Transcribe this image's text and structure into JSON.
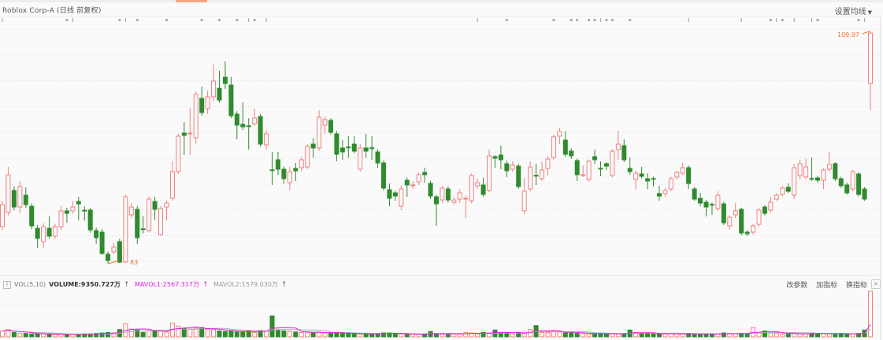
{
  "header": {
    "title": "Roblox Corp-A (日线 前复权)",
    "ma_settings_label": "设置均线"
  },
  "colors": {
    "up": "#f08080",
    "down": "#2e8b2e",
    "mavol1": "#e020e0",
    "mavol2": "#aaaaaa",
    "marker": "#f07030"
  },
  "price_labels": {
    "max": "109.97",
    "min": "83"
  },
  "volume_panel": {
    "help_icon": "?",
    "name": "VOL(5,10)",
    "volume": "VOLUME:9350.727万",
    "mavol1": "MAVOL1:2567.317万",
    "mavol2": "MAVOL2:1579.030万",
    "tools": [
      "改参数",
      "加指标",
      "换指标"
    ],
    "close_icon": "×"
  },
  "chart_data": {
    "type": "candlestick",
    "price_range": [
      83,
      109.97
    ],
    "grid": true,
    "ohlc": [
      [
        87.3,
        90.3,
        86.9,
        89.86
      ],
      [
        88.94,
        94.24,
        88.6,
        93.33
      ],
      [
        91.5,
        92.0,
        89.2,
        89.58
      ],
      [
        89.58,
        92.6,
        88.9,
        91.96
      ],
      [
        90.95,
        91.87,
        89.5,
        89.86
      ],
      [
        89.67,
        90.0,
        87.0,
        87.39
      ],
      [
        87.11,
        87.5,
        84.83,
        85.93
      ],
      [
        85.56,
        87.7,
        84.8,
        87.3
      ],
      [
        87.11,
        88.5,
        85.9,
        86.2
      ],
      [
        86.2,
        87.6,
        85.9,
        87.3
      ],
      [
        87.3,
        89.7,
        86.9,
        89.13
      ],
      [
        89.13,
        89.5,
        87.75,
        88.85
      ],
      [
        89.13,
        90.3,
        88.8,
        89.58
      ],
      [
        90.22,
        90.77,
        88.03,
        89.95
      ],
      [
        89.2,
        89.67,
        88.0,
        89.13
      ],
      [
        89.22,
        89.5,
        86.6,
        86.93
      ],
      [
        86.84,
        87.2,
        85.29,
        86.02
      ],
      [
        86.66,
        87.0,
        84.0,
        84.19
      ],
      [
        84.1,
        84.4,
        83.0,
        83.37
      ],
      [
        84.37,
        85.4,
        84.1,
        84.92
      ],
      [
        85.56,
        85.9,
        83.1,
        83.18
      ],
      [
        83.18,
        91.0,
        83.1,
        90.77
      ],
      [
        88.67,
        90.04,
        88.3,
        89.58
      ],
      [
        89.31,
        89.7,
        85.29,
        86.02
      ],
      [
        87.05,
        88.5,
        86.5,
        87.02
      ],
      [
        86.84,
        90.8,
        86.6,
        90.5
      ],
      [
        90.22,
        90.77,
        88.03,
        89.31
      ],
      [
        86.38,
        89.7,
        86.2,
        89.4
      ],
      [
        89.58,
        90.3,
        88.0,
        90.04
      ],
      [
        90.59,
        94.88,
        90.3,
        93.69
      ],
      [
        93.69,
        98.1,
        93.4,
        97.81
      ],
      [
        98.17,
        99.45,
        95.61,
        97.9
      ],
      [
        98.1,
        101.1,
        95.6,
        98.17
      ],
      [
        97.63,
        103.0,
        96.9,
        102.65
      ],
      [
        102.2,
        103.57,
        100.2,
        100.55
      ],
      [
        101.01,
        103.1,
        100.37,
        102.38
      ],
      [
        102.38,
        106.12,
        101.9,
        104.21
      ],
      [
        103.38,
        105.4,
        101.7,
        102.01
      ],
      [
        104.66,
        106.49,
        103.3,
        103.93
      ],
      [
        103.75,
        104.7,
        99.9,
        100.18
      ],
      [
        100.37,
        100.7,
        97.44,
        99.09
      ],
      [
        99.18,
        101.74,
        98.54,
        98.9
      ],
      [
        99.02,
        99.9,
        96.25,
        99.0
      ],
      [
        99.27,
        101.0,
        99.0,
        99.91
      ],
      [
        100.09,
        100.4,
        96.6,
        96.89
      ],
      [
        96.8,
        98.5,
        96.25,
        98.08
      ],
      [
        93.9,
        95.98,
        92.14,
        93.88
      ],
      [
        95.07,
        96.0,
        93.3,
        93.97
      ],
      [
        93.97,
        94.3,
        92.3,
        92.87
      ],
      [
        92.41,
        94.24,
        91.5,
        93.69
      ],
      [
        94.06,
        94.7,
        92.6,
        93.78
      ],
      [
        94.15,
        95.4,
        93.7,
        95.07
      ],
      [
        94.24,
        96.9,
        94.0,
        96.62
      ],
      [
        96.89,
        97.6,
        95.3,
        96.44
      ],
      [
        96.44,
        100.8,
        96.1,
        100.0
      ],
      [
        99.09,
        100.1,
        98.08,
        99.73
      ],
      [
        99.64,
        99.9,
        98.0,
        98.26
      ],
      [
        98.08,
        98.4,
        94.88,
        95.71
      ],
      [
        96.44,
        97.35,
        95.07,
        95.98
      ],
      [
        96.55,
        97.8,
        95.3,
        96.53
      ],
      [
        96.89,
        97.8,
        95.8,
        96.07
      ],
      [
        93.97,
        96.9,
        93.7,
        96.44
      ],
      [
        96.44,
        98.08,
        95.3,
        96.07
      ],
      [
        96.46,
        97.8,
        95.07,
        96.44
      ],
      [
        95.98,
        96.3,
        94.15,
        94.7
      ],
      [
        94.7,
        95.0,
        91.5,
        91.78
      ],
      [
        91.59,
        92.3,
        89.67,
        90.59
      ],
      [
        91.23,
        91.5,
        90.3,
        90.86
      ],
      [
        89.67,
        92.1,
        89.2,
        91.68
      ],
      [
        92.69,
        93.0,
        90.77,
        92.14
      ],
      [
        92.12,
        92.6,
        91.68,
        92.14
      ],
      [
        92.51,
        93.6,
        92.14,
        93.33
      ],
      [
        93.6,
        94.15,
        92.4,
        93.33
      ],
      [
        92.32,
        92.6,
        90.5,
        90.86
      ],
      [
        90.77,
        91.0,
        87.39,
        89.95
      ],
      [
        90.4,
        92.0,
        90.04,
        91.78
      ],
      [
        91.68,
        92.0,
        90.1,
        90.4
      ],
      [
        90.13,
        90.7,
        89.86,
        90.4
      ],
      [
        90.5,
        91.68,
        90.04,
        91.23
      ],
      [
        90.57,
        90.9,
        88.3,
        90.59
      ],
      [
        90.31,
        93.5,
        90.0,
        93.24
      ],
      [
        92.05,
        92.9,
        91.68,
        92.41
      ],
      [
        92.14,
        93.0,
        90.77,
        91.04
      ],
      [
        91.5,
        96.25,
        91.3,
        95.52
      ],
      [
        95.43,
        95.6,
        94.15,
        95.25
      ],
      [
        95.61,
        96.71,
        93.97,
        95.07
      ],
      [
        94.61,
        95.0,
        93.06,
        93.79
      ],
      [
        93.97,
        94.9,
        93.7,
        94.43
      ],
      [
        94.33,
        94.6,
        91.7,
        91.96
      ],
      [
        89.13,
        92.96,
        88.76,
        91.41
      ],
      [
        91.68,
        94.88,
        91.4,
        94.24
      ],
      [
        93.26,
        94.6,
        92.14,
        93.24
      ],
      [
        92.87,
        94.88,
        92.6,
        93.88
      ],
      [
        94.06,
        95.5,
        93.24,
        95.16
      ],
      [
        95.34,
        98.0,
        95.1,
        97.72
      ],
      [
        97.81,
        98.72,
        96.89,
        98.36
      ],
      [
        97.35,
        98.36,
        95.4,
        95.71
      ],
      [
        96.07,
        96.4,
        95.16,
        95.52
      ],
      [
        94.97,
        95.2,
        92.6,
        93.33
      ],
      [
        93.31,
        94.43,
        93.06,
        93.33
      ],
      [
        92.78,
        95.1,
        92.5,
        94.88
      ],
      [
        95.43,
        96.25,
        94.61,
        95.07
      ],
      [
        94.08,
        94.88,
        93.15,
        94.06
      ],
      [
        94.61,
        94.8,
        93.88,
        94.33
      ],
      [
        93.24,
        96.3,
        93.0,
        96.07
      ],
      [
        96.25,
        98.45,
        95.07,
        96.89
      ],
      [
        96.71,
        97.44,
        94.8,
        95.07
      ],
      [
        94.06,
        95.34,
        93.33,
        93.69
      ],
      [
        92.78,
        93.8,
        91.59,
        93.51
      ],
      [
        93.42,
        94.24,
        92.87,
        93.15
      ],
      [
        92.87,
        93.5,
        91.68,
        92.6
      ],
      [
        92.89,
        93.1,
        91.96,
        92.87
      ],
      [
        91.14,
        92.05,
        90.31,
        90.86
      ],
      [
        91.14,
        91.8,
        90.77,
        91.5
      ],
      [
        91.68,
        93.1,
        91.41,
        92.87
      ],
      [
        93.06,
        93.8,
        92.78,
        93.6
      ],
      [
        93.51,
        94.7,
        93.3,
        94.15
      ],
      [
        94.15,
        94.4,
        91.68,
        92.32
      ],
      [
        91.68,
        91.9,
        90.3,
        90.5
      ],
      [
        90.59,
        91.23,
        89.67,
        90.04
      ],
      [
        90.13,
        90.4,
        88.48,
        89.58
      ],
      [
        89.88,
        90.1,
        88.67,
        89.86
      ],
      [
        89.4,
        91.41,
        89.13,
        90.95
      ],
      [
        89.95,
        90.2,
        87.5,
        87.75
      ],
      [
        87.39,
        88.6,
        86.93,
        88.39
      ],
      [
        88.67,
        90.04,
        88.3,
        89.13
      ],
      [
        89.31,
        89.5,
        86.3,
        86.57
      ],
      [
        86.66,
        86.9,
        86.2,
        86.47
      ],
      [
        86.66,
        87.6,
        86.4,
        87.39
      ],
      [
        87.57,
        89.5,
        87.3,
        89.22
      ],
      [
        89.58,
        89.8,
        88.6,
        88.85
      ],
      [
        89.22,
        90.77,
        88.9,
        90.13
      ],
      [
        90.5,
        91.2,
        90.3,
        90.95
      ],
      [
        91.04,
        92.0,
        90.8,
        91.78
      ],
      [
        91.87,
        92.32,
        91.2,
        91.41
      ],
      [
        90.95,
        94.6,
        90.5,
        94.15
      ],
      [
        93.24,
        95.07,
        92.78,
        94.61
      ],
      [
        93.06,
        95.16,
        92.8,
        94.24
      ],
      [
        92.9,
        95.34,
        92.6,
        92.87
      ],
      [
        92.96,
        93.2,
        92.4,
        92.69
      ],
      [
        92.69,
        94.1,
        91.68,
        93.88
      ],
      [
        93.97,
        95.98,
        93.69,
        94.52
      ],
      [
        94.61,
        94.8,
        92.6,
        92.87
      ],
      [
        92.87,
        93.1,
        91.8,
        92.05
      ],
      [
        92.14,
        92.4,
        91.0,
        91.23
      ],
      [
        91.68,
        93.9,
        91.4,
        93.69
      ],
      [
        93.42,
        93.6,
        90.8,
        91.04
      ],
      [
        91.68,
        91.9,
        90.3,
        90.5
      ],
      [
        103.93,
        109.97,
        100.82,
        109.78
      ]
    ],
    "volume": [
      1200,
      1500,
      900,
      700,
      700,
      600,
      600,
      600,
      500,
      500,
      500,
      500,
      500,
      500,
      600,
      600,
      700,
      800,
      900,
      800,
      1500,
      2700,
      1600,
      1400,
      900,
      1300,
      1200,
      1300,
      1000,
      2800,
      2200,
      1700,
      1600,
      1800,
      1900,
      1500,
      1500,
      1200,
      1100,
      1200,
      1000,
      1100,
      1200,
      900,
      1300,
      1200,
      4300,
      1400,
      1200,
      1100,
      1000,
      900,
      900,
      800,
      1000,
      800,
      800,
      900,
      700,
      700,
      600,
      600,
      600,
      600,
      700,
      800,
      800,
      700,
      600,
      500,
      500,
      500,
      600,
      1100,
      600,
      500,
      600,
      600,
      700,
      900,
      800,
      600,
      900,
      700,
      1400,
      900,
      700,
      600,
      900,
      700,
      1500,
      2300,
      900,
      900,
      1100,
      1000,
      800,
      900,
      700,
      700,
      600,
      600,
      700,
      600,
      700,
      600,
      600,
      1400,
      900,
      700,
      700,
      600,
      600,
      600,
      700,
      600,
      600,
      700,
      600,
      600,
      600,
      600,
      600,
      800,
      700,
      600,
      700,
      600,
      1900,
      900,
      1200,
      800,
      700,
      600,
      600,
      700,
      600,
      600,
      800,
      700,
      700,
      600,
      600,
      700,
      600,
      600,
      700,
      1400,
      9350.72
    ]
  }
}
